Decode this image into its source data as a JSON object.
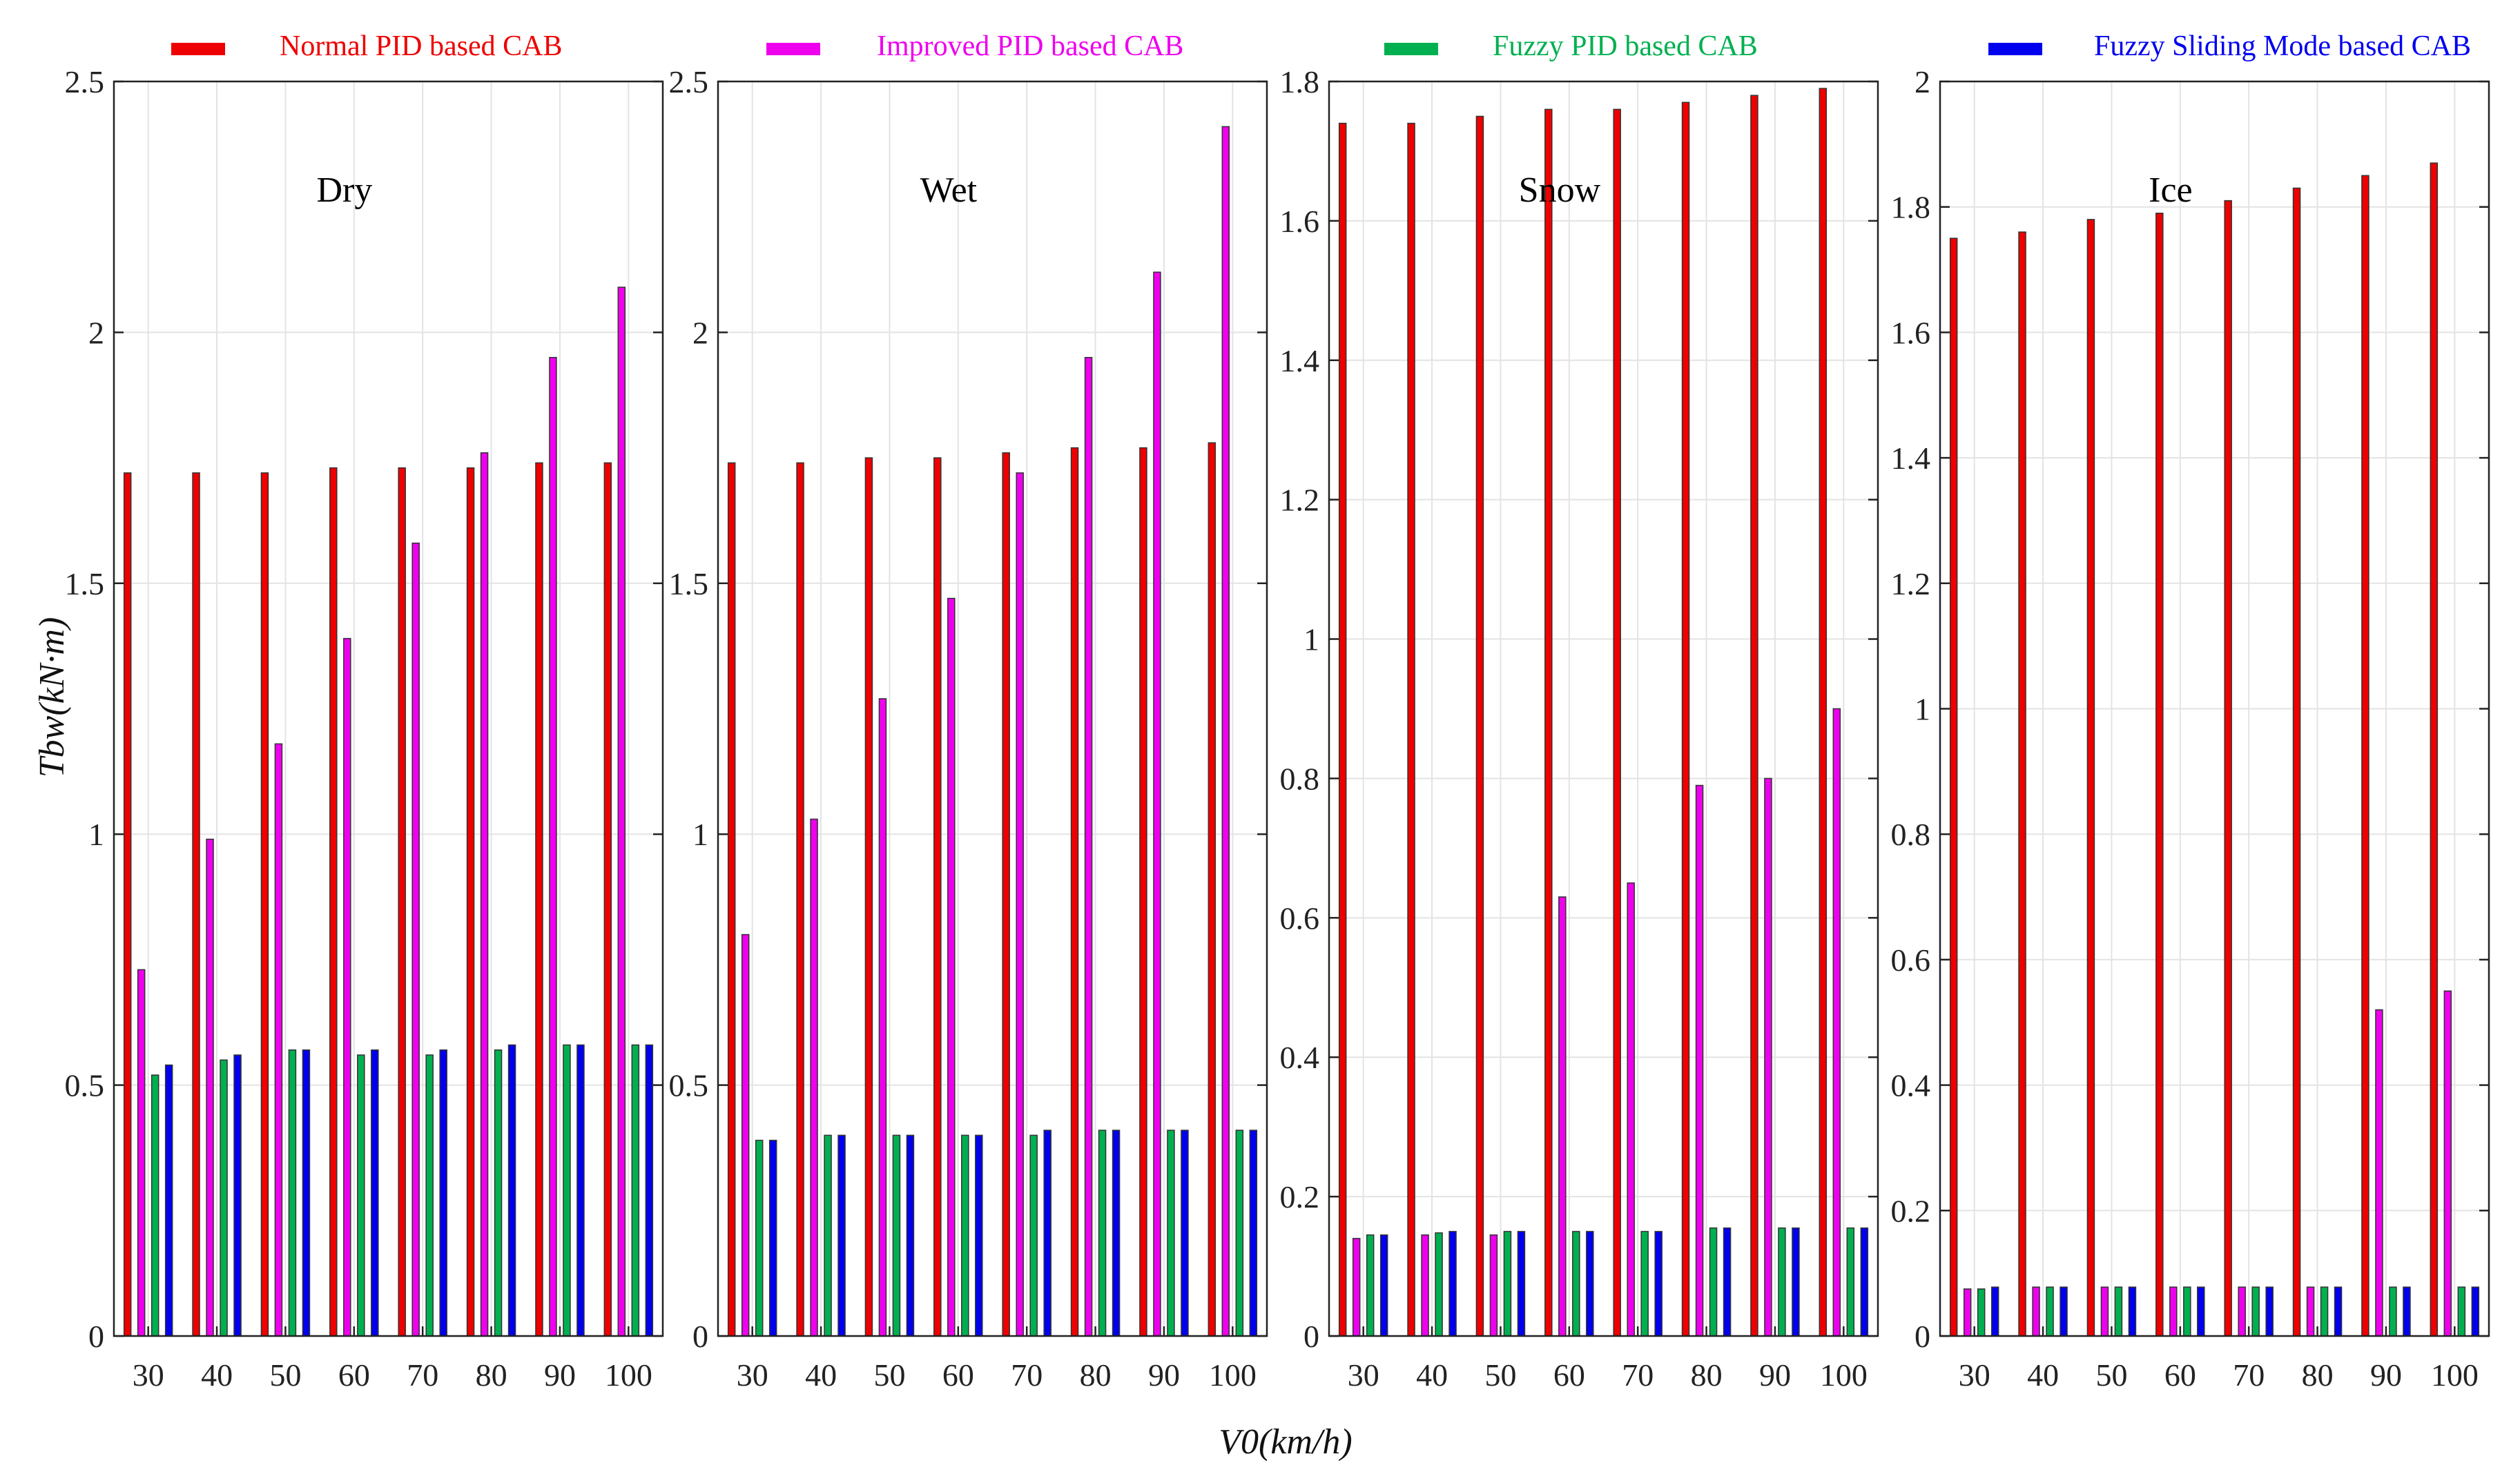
{
  "chart_data": {
    "type": "bar",
    "xlabel": "V0(km/h)",
    "ylabel": "Tbw(kN·m)",
    "legend_position": "top",
    "grid": true,
    "categories": [
      "30",
      "40",
      "50",
      "60",
      "70",
      "80",
      "90",
      "100"
    ],
    "series_meta": [
      {
        "name": "Normal PID based CAB",
        "color": "#ee0000"
      },
      {
        "name": "Improved PID based CAB",
        "color": "#ee00ee"
      },
      {
        "name": "Fuzzy PID based CAB",
        "color": "#00b050"
      },
      {
        "name": "Fuzzy Sliding Mode based CAB",
        "color": "#0000ee"
      }
    ],
    "panels": [
      {
        "title": "Dry",
        "ylim": [
          0,
          2.5
        ],
        "yticks": [
          "0",
          "0.5",
          "1",
          "1.5",
          "2",
          "2.5"
        ],
        "series": [
          {
            "name": "Normal PID based CAB",
            "values": [
              1.72,
              1.72,
              1.72,
              1.73,
              1.73,
              1.73,
              1.74,
              1.74
            ]
          },
          {
            "name": "Improved PID based CAB",
            "values": [
              0.73,
              0.99,
              1.18,
              1.39,
              1.58,
              1.76,
              1.95,
              2.09
            ]
          },
          {
            "name": "Fuzzy PID based CAB",
            "values": [
              0.52,
              0.55,
              0.57,
              0.56,
              0.56,
              0.57,
              0.58,
              0.58
            ]
          },
          {
            "name": "Fuzzy Sliding Mode based CAB",
            "values": [
              0.54,
              0.56,
              0.57,
              0.57,
              0.57,
              0.58,
              0.58,
              0.58
            ]
          }
        ]
      },
      {
        "title": "Wet",
        "ylim": [
          0,
          2.5
        ],
        "yticks": [
          "0",
          "0.5",
          "1",
          "1.5",
          "2",
          "2.5"
        ],
        "series": [
          {
            "name": "Normal PID based CAB",
            "values": [
              1.74,
              1.74,
              1.75,
              1.75,
              1.76,
              1.77,
              1.77,
              1.78
            ]
          },
          {
            "name": "Improved PID based CAB",
            "values": [
              0.8,
              1.03,
              1.27,
              1.47,
              1.72,
              1.95,
              2.12,
              2.41
            ]
          },
          {
            "name": "Fuzzy PID based CAB",
            "values": [
              0.39,
              0.4,
              0.4,
              0.4,
              0.4,
              0.41,
              0.41,
              0.41
            ]
          },
          {
            "name": "Fuzzy Sliding Mode based CAB",
            "values": [
              0.39,
              0.4,
              0.4,
              0.4,
              0.41,
              0.41,
              0.41,
              0.41
            ]
          }
        ]
      },
      {
        "title": "Snow",
        "ylim": [
          0,
          1.8
        ],
        "yticks": [
          "0",
          "0.2",
          "0.4",
          "0.6",
          "0.8",
          "1",
          "1.2",
          "1.4",
          "1.6",
          "1.8"
        ],
        "series": [
          {
            "name": "Normal PID based CAB",
            "values": [
              1.74,
              1.74,
              1.75,
              1.76,
              1.76,
              1.77,
              1.78,
              1.79
            ]
          },
          {
            "name": "Improved PID based CAB",
            "values": [
              0.14,
              0.145,
              0.145,
              0.63,
              0.65,
              0.79,
              0.8,
              0.9
            ]
          },
          {
            "name": "Fuzzy PID based CAB",
            "values": [
              0.145,
              0.148,
              0.15,
              0.15,
              0.15,
              0.155,
              0.155,
              0.155
            ]
          },
          {
            "name": "Fuzzy Sliding Mode based CAB",
            "values": [
              0.145,
              0.15,
              0.15,
              0.15,
              0.15,
              0.155,
              0.155,
              0.155
            ]
          }
        ]
      },
      {
        "title": "Ice",
        "ylim": [
          0,
          2
        ],
        "yticks": [
          "0",
          "0.2",
          "0.4",
          "0.6",
          "0.8",
          "1",
          "1.2",
          "1.4",
          "1.6",
          "1.8",
          "2"
        ],
        "series": [
          {
            "name": "Normal PID based CAB",
            "values": [
              1.75,
              1.76,
              1.78,
              1.79,
              1.81,
              1.83,
              1.85,
              1.87
            ]
          },
          {
            "name": "Improved PID based CAB",
            "values": [
              0.075,
              0.078,
              0.078,
              0.078,
              0.078,
              0.078,
              0.52,
              0.55
            ]
          },
          {
            "name": "Fuzzy PID based CAB",
            "values": [
              0.075,
              0.078,
              0.078,
              0.078,
              0.078,
              0.078,
              0.078,
              0.078
            ]
          },
          {
            "name": "Fuzzy Sliding Mode based CAB",
            "values": [
              0.078,
              0.078,
              0.078,
              0.078,
              0.078,
              0.078,
              0.078,
              0.078
            ]
          }
        ]
      }
    ]
  }
}
